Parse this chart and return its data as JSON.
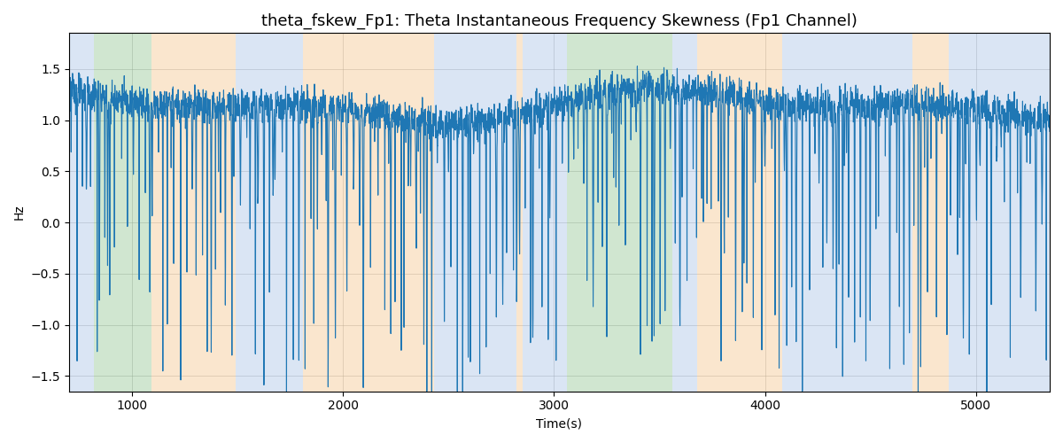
{
  "title": "theta_fskew_Fp1: Theta Instantaneous Frequency Skewness (Fp1 Channel)",
  "xlabel": "Time(s)",
  "ylabel": "Hz",
  "xlim": [
    700,
    5350
  ],
  "ylim": [
    -1.65,
    1.85
  ],
  "line_color": "#1f77b4",
  "line_width": 0.8,
  "grid": true,
  "yticks": [
    -1.5,
    -1.0,
    -0.5,
    0.0,
    0.5,
    1.0,
    1.5
  ],
  "xticks": [
    1000,
    2000,
    3000,
    4000,
    5000
  ],
  "background_regions": [
    {
      "xmin": 700,
      "xmax": 820,
      "color": "#aec6e8",
      "alpha": 0.45
    },
    {
      "xmin": 820,
      "xmax": 1090,
      "color": "#98c998",
      "alpha": 0.45
    },
    {
      "xmin": 1090,
      "xmax": 1490,
      "color": "#f5c993",
      "alpha": 0.45
    },
    {
      "xmin": 1490,
      "xmax": 1810,
      "color": "#aec6e8",
      "alpha": 0.45
    },
    {
      "xmin": 1810,
      "xmax": 1860,
      "color": "#f5c993",
      "alpha": 0.45
    },
    {
      "xmin": 1860,
      "xmax": 2430,
      "color": "#f5c993",
      "alpha": 0.45
    },
    {
      "xmin": 2430,
      "xmax": 2820,
      "color": "#aec6e8",
      "alpha": 0.45
    },
    {
      "xmin": 2820,
      "xmax": 2850,
      "color": "#f5c993",
      "alpha": 0.45
    },
    {
      "xmin": 2850,
      "xmax": 3060,
      "color": "#aec6e8",
      "alpha": 0.45
    },
    {
      "xmin": 3060,
      "xmax": 3560,
      "color": "#98c998",
      "alpha": 0.45
    },
    {
      "xmin": 3560,
      "xmax": 3680,
      "color": "#aec6e8",
      "alpha": 0.45
    },
    {
      "xmin": 3680,
      "xmax": 4080,
      "color": "#f5c993",
      "alpha": 0.45
    },
    {
      "xmin": 4080,
      "xmax": 4700,
      "color": "#aec6e8",
      "alpha": 0.45
    },
    {
      "xmin": 4700,
      "xmax": 4870,
      "color": "#f5c993",
      "alpha": 0.45
    },
    {
      "xmin": 4870,
      "xmax": 5350,
      "color": "#aec6e8",
      "alpha": 0.45
    }
  ],
  "title_fontsize": 13,
  "figsize": [
    12.0,
    5.0
  ],
  "dpi": 100
}
